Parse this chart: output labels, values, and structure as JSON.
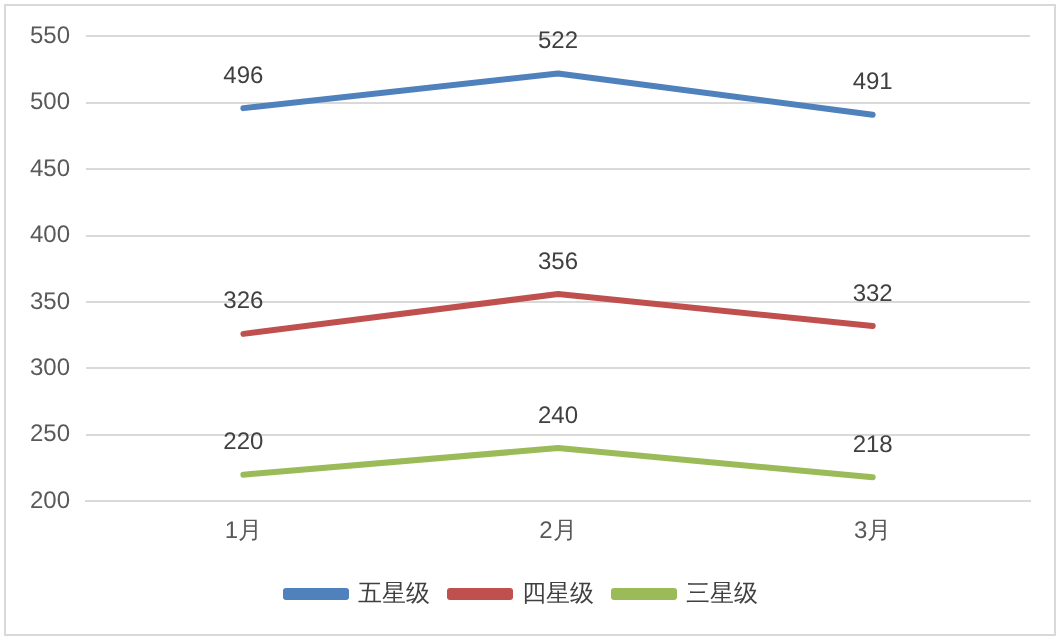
{
  "chart_data": {
    "type": "line",
    "categories": [
      "1月",
      "2月",
      "3月"
    ],
    "series": [
      {
        "name": "五星级",
        "color": "#4f81bd",
        "values": [
          496,
          522,
          491
        ]
      },
      {
        "name": "四星级",
        "color": "#c0504d",
        "values": [
          326,
          356,
          332
        ]
      },
      {
        "name": "三星级",
        "color": "#9bbb59",
        "values": [
          220,
          240,
          218
        ]
      }
    ],
    "ylim": [
      200,
      550
    ],
    "yticks": [
      200,
      250,
      300,
      350,
      400,
      450,
      500,
      550
    ],
    "grid": "y",
    "legend": "bottom",
    "data_labels": true,
    "marker": "none",
    "line_style": "solid"
  }
}
